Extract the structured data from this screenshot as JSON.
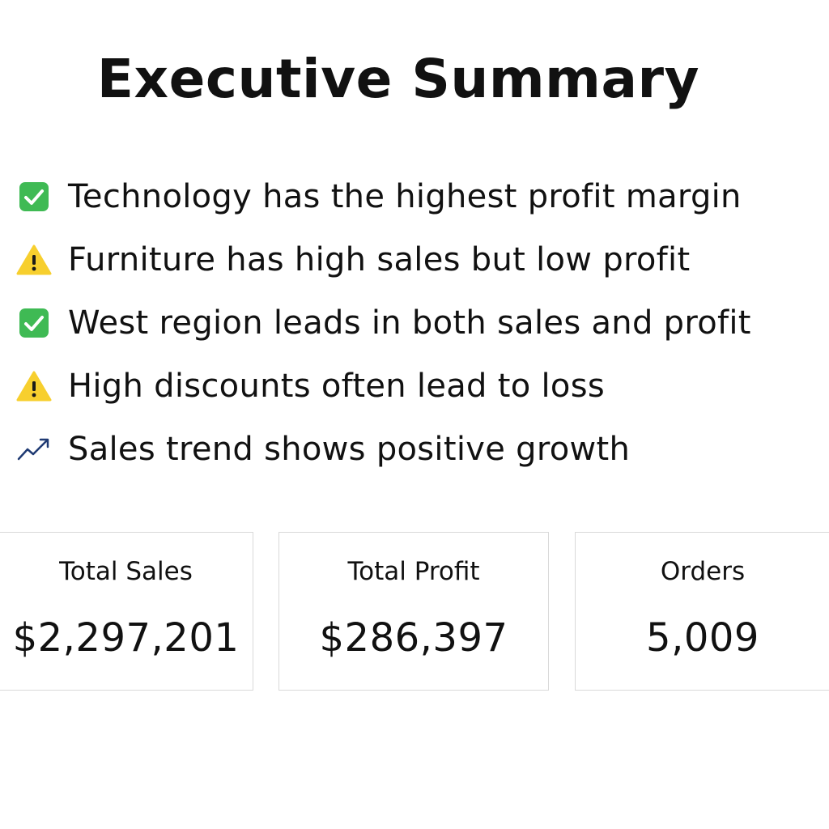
{
  "header": {
    "title": "Executive Summary"
  },
  "insights": [
    {
      "icon": "check-box-icon",
      "text": "Technology has the highest profit margin"
    },
    {
      "icon": "warning-icon",
      "text": "Furniture has high sales but low profit"
    },
    {
      "icon": "check-box-icon",
      "text": "West region leads in both sales and profit"
    },
    {
      "icon": "warning-icon",
      "text": "High discounts often lead to loss"
    },
    {
      "icon": "trend-up-icon",
      "text": "Sales trend shows positive growth"
    }
  ],
  "kpis": [
    {
      "label": "Total Sales",
      "value": "$2,297,201"
    },
    {
      "label": "Total Profit",
      "value": "$286,397"
    },
    {
      "label": "Orders",
      "value": "5,009"
    }
  ],
  "colors": {
    "check_green": "#3fba54",
    "warning_yellow": "#f7cf2e",
    "trend_navy": "#1f3a73",
    "card_border": "#d9d9d9"
  }
}
